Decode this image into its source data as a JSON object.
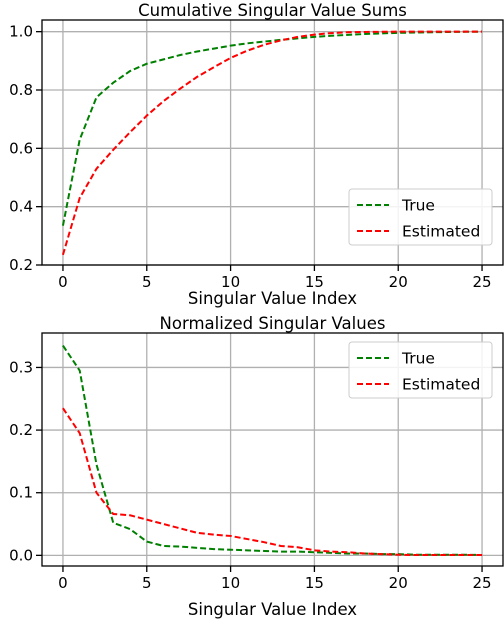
{
  "chart_data": [
    {
      "type": "line",
      "title": "Cumulative Singular Value Sums",
      "xlabel": "Singular Value Index",
      "ylabel": "",
      "xlim": [
        -1.25,
        26.25
      ],
      "ylim": [
        0.2,
        1.04
      ],
      "xticks": [
        0,
        5,
        10,
        15,
        20,
        25
      ],
      "yticks": [
        0.2,
        0.4,
        0.6,
        0.8,
        1.0
      ],
      "xtick_labels": [
        "0",
        "5",
        "10",
        "15",
        "20",
        "25"
      ],
      "ytick_labels": [
        "0.2",
        "0.4",
        "0.6",
        "0.8",
        "1.0"
      ],
      "grid": true,
      "legend_position": "lower-right",
      "x": [
        0,
        1,
        2,
        3,
        4,
        5,
        6,
        7,
        8,
        9,
        10,
        11,
        12,
        13,
        14,
        15,
        16,
        17,
        18,
        19,
        20,
        21,
        22,
        23,
        24,
        25
      ],
      "series": [
        {
          "name": "True",
          "color": "#008000",
          "style": "dashed",
          "values": [
            0.335,
            0.63,
            0.775,
            0.825,
            0.865,
            0.89,
            0.905,
            0.92,
            0.932,
            0.942,
            0.952,
            0.96,
            0.966,
            0.972,
            0.977,
            0.982,
            0.986,
            0.989,
            0.992,
            0.994,
            0.996,
            0.997,
            0.998,
            0.999,
            0.9995,
            1.0
          ]
        },
        {
          "name": "Estimated",
          "color": "#ff0000",
          "style": "dashed",
          "values": [
            0.235,
            0.43,
            0.53,
            0.595,
            0.655,
            0.712,
            0.762,
            0.805,
            0.845,
            0.878,
            0.91,
            0.935,
            0.955,
            0.97,
            0.982,
            0.99,
            0.995,
            0.998,
            0.999,
            0.9995,
            1.0,
            1.0,
            1.0,
            1.0,
            1.0,
            1.0
          ]
        }
      ]
    },
    {
      "type": "line",
      "title": "Normalized Singular Values",
      "xlabel": "Singular Value Index",
      "ylabel": "",
      "xlim": [
        -1.25,
        26.25
      ],
      "ylim": [
        -0.017,
        0.355
      ],
      "xticks": [
        0,
        5,
        10,
        15,
        20,
        25
      ],
      "yticks": [
        0.0,
        0.1,
        0.2,
        0.3
      ],
      "xtick_labels": [
        "0",
        "5",
        "10",
        "15",
        "20",
        "25"
      ],
      "ytick_labels": [
        "0.0",
        "0.1",
        "0.2",
        "0.3"
      ],
      "grid": true,
      "legend_position": "upper-right",
      "x": [
        0,
        1,
        2,
        3,
        4,
        5,
        6,
        7,
        8,
        9,
        10,
        11,
        12,
        13,
        14,
        15,
        16,
        17,
        18,
        19,
        20,
        21,
        22,
        23,
        24,
        25
      ],
      "series": [
        {
          "name": "True",
          "color": "#008000",
          "style": "dashed",
          "values": [
            0.335,
            0.295,
            0.145,
            0.052,
            0.042,
            0.022,
            0.015,
            0.014,
            0.012,
            0.01,
            0.009,
            0.008,
            0.007,
            0.006,
            0.006,
            0.005,
            0.004,
            0.003,
            0.003,
            0.002,
            0.002,
            0.001,
            0.001,
            0.001,
            0.001,
            0.0005
          ]
        },
        {
          "name": "Estimated",
          "color": "#ff0000",
          "style": "dashed",
          "values": [
            0.235,
            0.195,
            0.1,
            0.066,
            0.064,
            0.057,
            0.05,
            0.043,
            0.036,
            0.033,
            0.031,
            0.026,
            0.021,
            0.015,
            0.013,
            0.008,
            0.006,
            0.005,
            0.003,
            0.002,
            0.001,
            0.0005,
            0.0005,
            0.0005,
            0.0005,
            0.0005
          ]
        }
      ]
    }
  ]
}
